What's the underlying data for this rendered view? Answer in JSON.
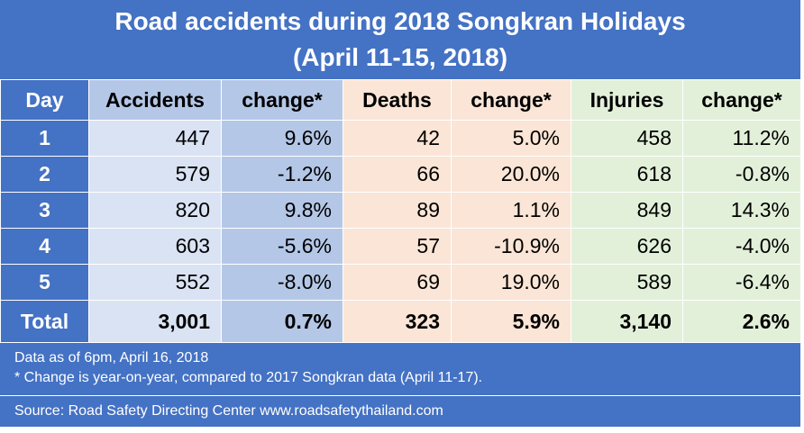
{
  "title_line1": "Road accidents during 2018 Songkran Holidays",
  "title_line2": "(April 11-15, 2018)",
  "colors": {
    "blue": "#4472c4",
    "accidents": "#dae3f3",
    "accidents_change": "#b4c7e7",
    "deaths": "#fbe5d6",
    "injuries": "#e2f0d9"
  },
  "chart_data": {
    "type": "table",
    "columns": [
      "Day",
      "Accidents",
      "change*",
      "Deaths",
      "change*",
      "Injuries",
      "change*"
    ],
    "rows": [
      [
        "1",
        "447",
        "9.6%",
        "42",
        "5.0%",
        "458",
        "11.2%"
      ],
      [
        "2",
        "579",
        "-1.2%",
        "66",
        "20.0%",
        "618",
        "-0.8%"
      ],
      [
        "3",
        "820",
        "9.8%",
        "89",
        "1.1%",
        "849",
        "14.3%"
      ],
      [
        "4",
        "603",
        "-5.6%",
        "57",
        "-10.9%",
        "626",
        "-4.0%"
      ],
      [
        "5",
        "552",
        "-8.0%",
        "69",
        "19.0%",
        "589",
        "-6.4%"
      ],
      [
        "Total",
        "3,001",
        "0.7%",
        "323",
        "5.9%",
        "3,140",
        "2.6%"
      ]
    ]
  },
  "notes": [
    "Data as of 6pm, April 16, 2018",
    "* Change is year-on-year, compared to 2017 Songkran data (April 11-17)."
  ],
  "source": "Source: Road Safety Directing Center www.roadsafetythailand.com"
}
